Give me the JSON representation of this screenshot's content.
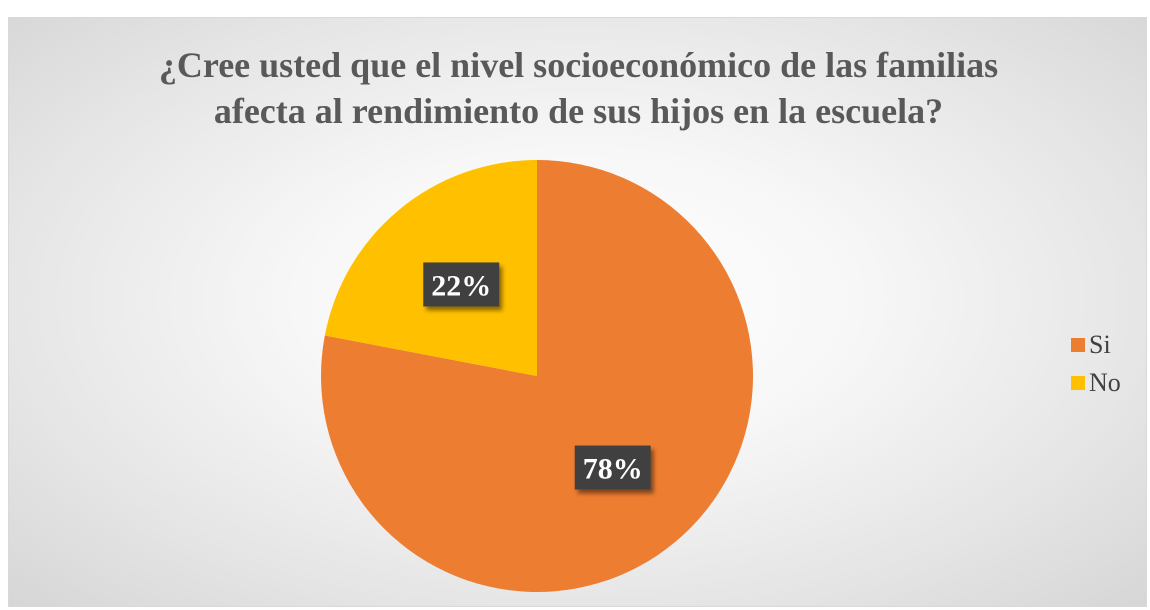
{
  "chart_data": {
    "type": "pie",
    "title_lines": [
      "¿Cree usted que el nivel socioeconómico de las familias",
      "afecta al rendimiento de sus hijos en la escuela?"
    ],
    "categories": [
      "Si",
      "No"
    ],
    "values": [
      78,
      22
    ],
    "data_labels": [
      "78%",
      "22%"
    ],
    "colors": [
      "#ED7D31",
      "#FFC000"
    ],
    "label_box_color": "#404040",
    "legend_placement": "right"
  }
}
